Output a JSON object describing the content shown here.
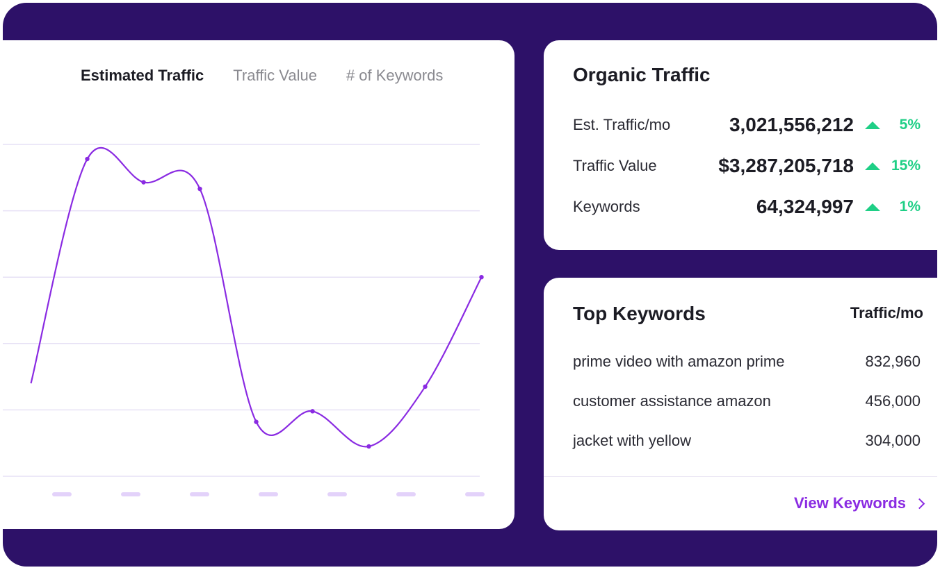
{
  "chart_tabs": [
    {
      "label": "Estimated Traffic",
      "active": true
    },
    {
      "label": "Traffic Value",
      "active": false
    },
    {
      "label": "# of Keywords",
      "active": false
    }
  ],
  "chart_data": {
    "type": "line",
    "x": [
      0,
      1,
      2,
      3,
      4,
      5,
      6,
      7,
      8
    ],
    "values": [
      1.4,
      4.78,
      4.43,
      4.33,
      0.82,
      0.98,
      0.45,
      1.35,
      3.0
    ],
    "ylim": [
      0,
      5
    ],
    "grid": true,
    "x_tick_count": 7,
    "line_color": "#8a2be2",
    "grid_color": "#e6e0f5",
    "tick_color": "#e3d2fa"
  },
  "organic": {
    "title": "Organic Traffic",
    "metrics": [
      {
        "label": "Est. Traffic/mo",
        "value": "3,021,556,212",
        "change": "5%"
      },
      {
        "label": "Traffic Value",
        "value": "$3,287,205,718",
        "change": "15%"
      },
      {
        "label": "Keywords",
        "value": "64,324,997",
        "change": "1%"
      }
    ]
  },
  "top_keywords": {
    "title": "Top Keywords",
    "column_header": "Traffic/mo",
    "rows": [
      {
        "keyword": "prime video with amazon prime",
        "traffic": "832,960"
      },
      {
        "keyword": "customer assistance amazon",
        "traffic": "456,000"
      },
      {
        "keyword": "jacket with yellow",
        "traffic": "304,000"
      }
    ],
    "link_label": "View Keywords"
  },
  "colors": {
    "background": "#2d1168",
    "accent": "#8a2be2",
    "positive": "#1fcf86"
  }
}
